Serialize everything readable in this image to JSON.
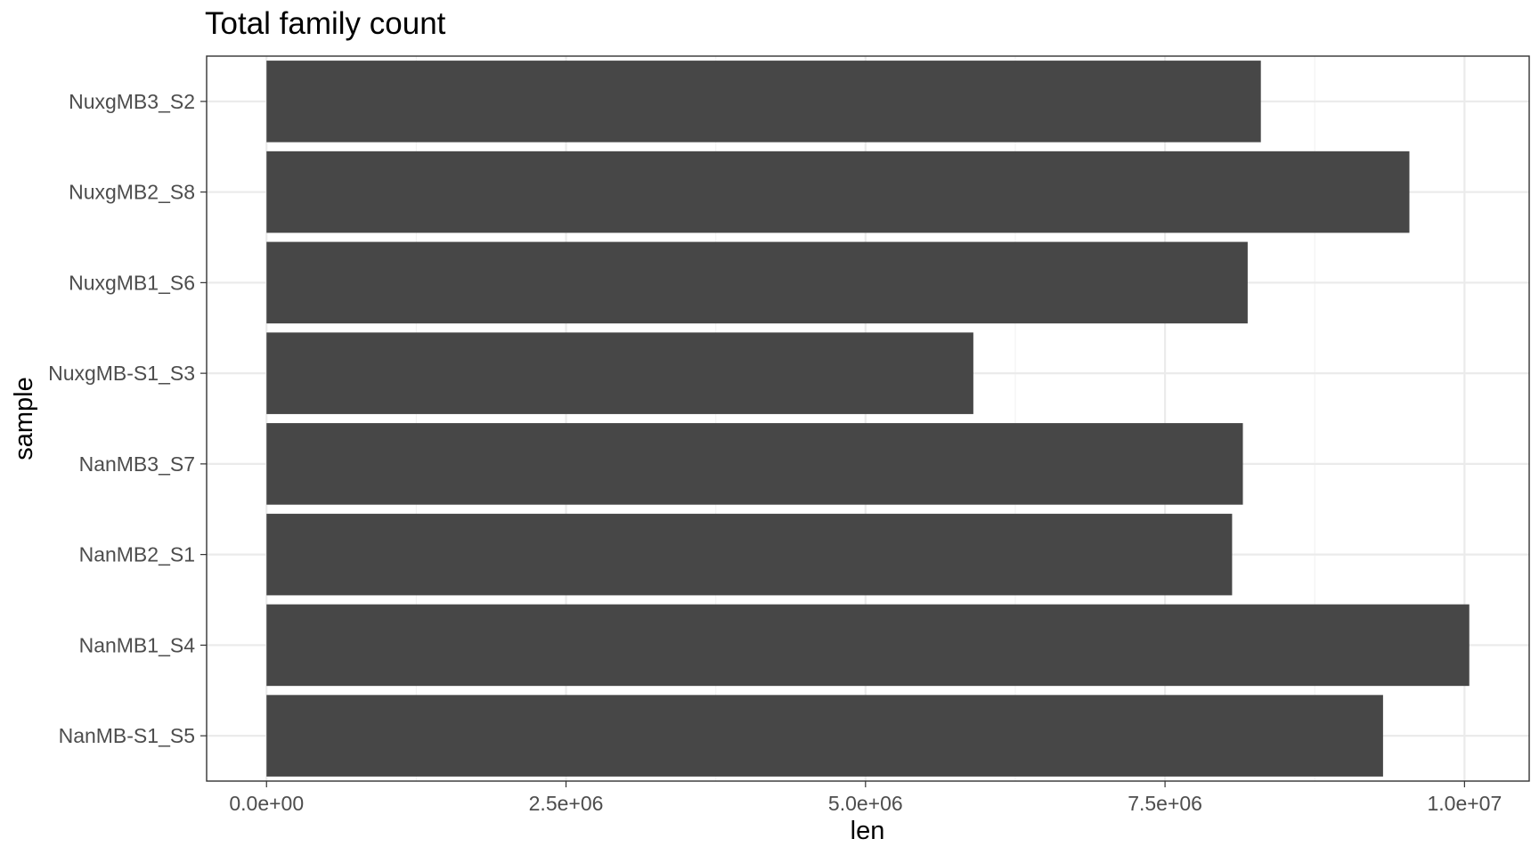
{
  "chart_data": {
    "type": "bar",
    "orientation": "horizontal",
    "title": "Total family count",
    "xlabel": "len",
    "ylabel": "sample",
    "categories": [
      "NanMB-S1_S5",
      "NanMB1_S4",
      "NanMB2_S1",
      "NanMB3_S7",
      "NuxgMB-S1_S3",
      "NuxgMB1_S6",
      "NuxgMB2_S8",
      "NuxgMB3_S2"
    ],
    "values": [
      9320000,
      10040000,
      8060000,
      8150000,
      5900000,
      8190000,
      9540000,
      8300000
    ],
    "xlim": [
      -500000,
      10540000
    ],
    "x_ticks": [
      0,
      2500000,
      5000000,
      7500000,
      10000000
    ],
    "x_tick_labels": [
      "0.0e+00",
      "2.5e+06",
      "5.0e+06",
      "7.5e+06",
      "1.0e+07"
    ],
    "grid": true,
    "bar_color": "#474747",
    "legend": "none"
  }
}
